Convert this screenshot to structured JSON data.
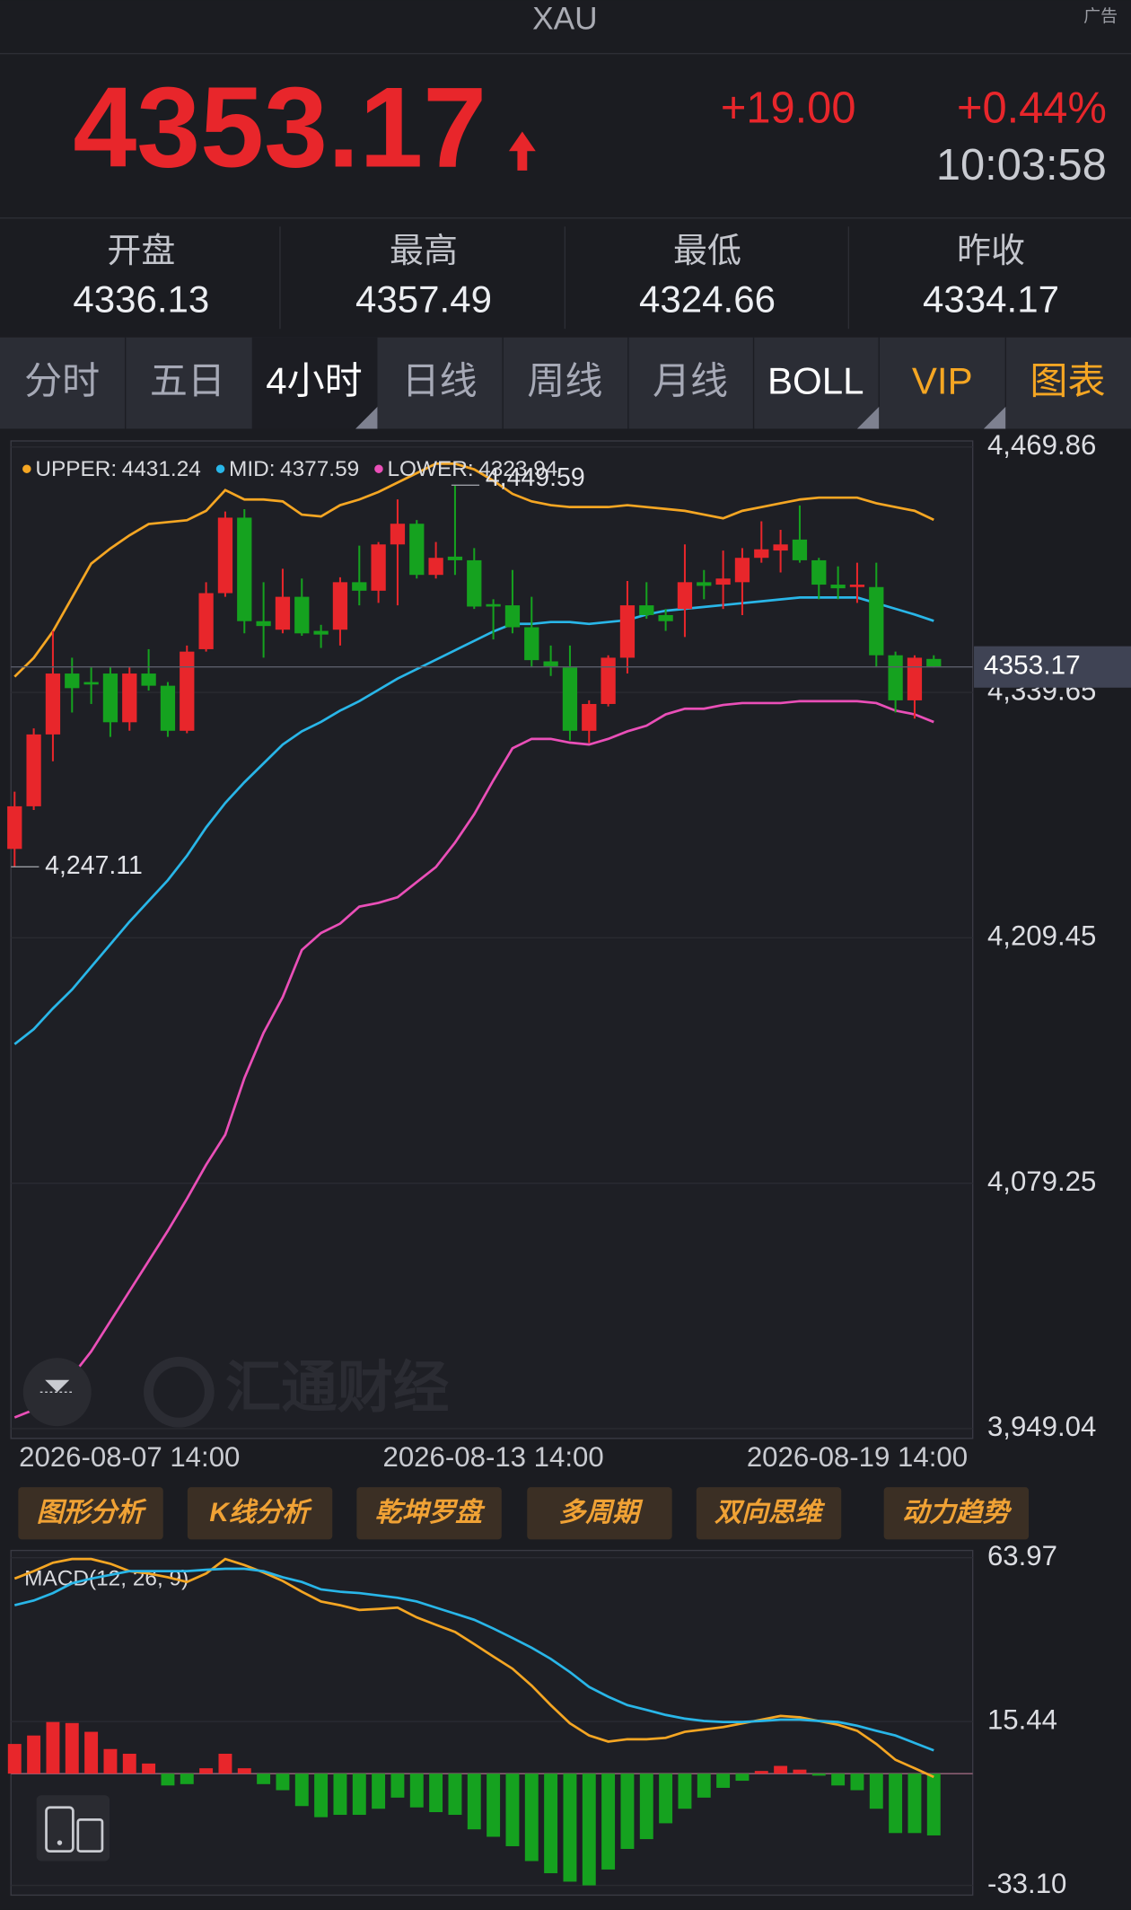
{
  "header": {
    "symbol": "XAU",
    "ad": "广告",
    "price": "4353.17",
    "change": "+19.00",
    "change_pct": "+0.44%",
    "time": "10:03:58"
  },
  "stats": [
    {
      "label": "开盘",
      "value": "4336.13"
    },
    {
      "label": "最高",
      "value": "4357.49"
    },
    {
      "label": "最低",
      "value": "4324.66"
    },
    {
      "label": "昨收",
      "value": "4334.17"
    }
  ],
  "tabs": [
    "分时",
    "五日",
    "4小时",
    "日线",
    "周线",
    "月线",
    "BOLL",
    "VIP",
    "图表"
  ],
  "tools": [
    "图形分析",
    "K线分析",
    "乾坤罗盘",
    "多周期",
    "双向思维",
    "动力趋势"
  ],
  "chart_data": [
    {
      "type": "candlestick",
      "watermark": "汇通财经",
      "categories": [
        null,
        null,
        null,
        null,
        null,
        null,
        "2026-08-07 14:00",
        null,
        null,
        null,
        null,
        null,
        null,
        null,
        null,
        null,
        null,
        null,
        null,
        null,
        null,
        null,
        null,
        null,
        null,
        "2026-08-13 14:00",
        null,
        null,
        null,
        null,
        null,
        null,
        null,
        null,
        null,
        null,
        null,
        null,
        null,
        null,
        null,
        null,
        null,
        null,
        "2026-08-19 14:00",
        null,
        null,
        null,
        null
      ],
      "ohlc": [
        [
          4256.62,
          4286.99,
          4247.11,
          4279.24
        ],
        [
          4279.24,
          4320.59,
          4277.3,
          4317.36
        ],
        [
          4317.36,
          4372.29,
          4303.15,
          4349.67
        ],
        [
          4349.67,
          4358.07,
          4328.99,
          4341.92
        ],
        [
          4345.15,
          4352.9,
          4333.52,
          4343.85
        ],
        [
          4349.67,
          4352.9,
          4316.07,
          4323.82
        ],
        [
          4323.82,
          4352.9,
          4319.3,
          4349.67
        ],
        [
          4349.67,
          4362.59,
          4340.62,
          4343.21
        ],
        [
          4343.21,
          4345.15,
          4316.07,
          4319.3
        ],
        [
          4319.3,
          4364.53,
          4318.01,
          4361.3
        ],
        [
          4362.59,
          4398.13,
          4361.3,
          4392.32
        ],
        [
          4392.32,
          4435.61,
          4390.38,
          4432.38
        ],
        [
          4432.38,
          4436.9,
          4370.99,
          4377.46
        ],
        [
          4377.46,
          4398.13,
          4358.07,
          4374.87
        ],
        [
          4372.93,
          4405.24,
          4370.99,
          4390.38
        ],
        [
          4390.38,
          4400.07,
          4369.7,
          4370.99
        ],
        [
          4372.29,
          4375.52,
          4363.24,
          4370.35
        ],
        [
          4372.93,
          4400.72,
          4364.53,
          4398.13
        ],
        [
          4398.13,
          4417.52,
          4385.86,
          4393.61
        ],
        [
          4393.61,
          4419.46,
          4387.15,
          4418.17
        ],
        [
          4418.17,
          4442.07,
          4385.86,
          4429.15
        ],
        [
          4429.15,
          4431.09,
          4400.07,
          4402.01
        ],
        [
          4402.01,
          4419.46,
          4400.07,
          4411.06
        ],
        [
          4411.7,
          4449.59,
          4402.01,
          4409.77
        ],
        [
          4409.77,
          4416.23,
          4383.92,
          4385.21
        ],
        [
          4386.5,
          4389.09,
          4367.76,
          4385.21
        ],
        [
          4385.86,
          4404.6,
          4370.99,
          4374.23
        ],
        [
          4374.23,
          4390.38,
          4352.9,
          4356.78
        ],
        [
          4356.13,
          4364.53,
          4348.38,
          4353.55
        ],
        [
          4352.9,
          4364.53,
          4314.13,
          4319.3
        ],
        [
          4319.3,
          4335.45,
          4312.84,
          4333.52
        ],
        [
          4333.52,
          4359.36,
          4332.22,
          4358.07
        ],
        [
          4358.07,
          4398.78,
          4349.67,
          4385.86
        ],
        [
          4385.86,
          4398.13,
          4378.75,
          4380.69
        ],
        [
          4380.69,
          4383.92,
          4372.29,
          4377.46
        ],
        [
          4383.92,
          4418.17,
          4369.06,
          4398.13
        ],
        [
          4398.13,
          4404.6,
          4389.09,
          4396.2
        ],
        [
          4396.84,
          4414.93,
          4383.92,
          4400.07
        ],
        [
          4398.13,
          4416.23,
          4380.69,
          4411.06
        ],
        [
          4411.06,
          4430.44,
          4408.47,
          4415.58
        ],
        [
          4414.93,
          4425.92,
          4403.3,
          4418.17
        ],
        [
          4420.75,
          4438.84,
          4408.47,
          4409.77
        ],
        [
          4409.77,
          4411.06,
          4389.09,
          4396.84
        ],
        [
          4396.84,
          4406.53,
          4389.09,
          4394.9
        ],
        [
          4395.55,
          4408.47,
          4387.15,
          4396.84
        ],
        [
          4395.55,
          4408.47,
          4352.9,
          4359.36
        ],
        [
          4359.36,
          4361.3,
          4328.99,
          4335.45
        ],
        [
          4335.45,
          4359.36,
          4325.76,
          4358.07
        ],
        [
          4357.42,
          4359.36,
          4352.9,
          4353.17
        ]
      ],
      "up_color": "#e8262b",
      "down_color": "#15a21f",
      "series": [
        {
          "name": "UPPER:",
          "color": "#f5a623",
          "values": [
            4348,
            4358,
            4372,
            4390,
            4408,
            4416,
            4423,
            4429,
            4430,
            4431,
            4436,
            4447,
            4442,
            4442,
            4441,
            4434,
            4433,
            4439,
            4442,
            4446,
            4451,
            4456,
            4461,
            4461,
            4458,
            4452,
            4445,
            4441,
            4439,
            4438,
            4438,
            4438,
            4439,
            4438,
            4437,
            4436,
            4434,
            4432,
            4436,
            4438,
            4440,
            4442,
            4443,
            4443,
            4443,
            4440,
            4438,
            4436,
            4431.24
          ]
        },
        {
          "name": "MID:",
          "color": "#29b6e8",
          "values": [
            4153,
            4161,
            4172,
            4182,
            4194,
            4206,
            4218,
            4229,
            4240,
            4253,
            4268,
            4281,
            4292,
            4302,
            4312,
            4319,
            4324,
            4330,
            4335,
            4341,
            4347,
            4352,
            4357,
            4362,
            4367,
            4372,
            4376,
            4376,
            4377,
            4377,
            4376,
            4377,
            4378,
            4381,
            4383,
            4384,
            4385,
            4386,
            4387,
            4388,
            4389,
            4390,
            4390,
            4390,
            4390,
            4387,
            4384,
            4381,
            4377.59
          ]
        },
        {
          "name": "LOWER:",
          "color": "#ea4fb8",
          "values": [
            3955,
            3959,
            3964,
            3977,
            3990,
            4006,
            4022,
            4038,
            4054,
            4071,
            4089,
            4105,
            4135,
            4159,
            4178,
            4203,
            4212,
            4217,
            4226,
            4228,
            4231,
            4239,
            4247,
            4260,
            4275,
            4293,
            4310,
            4315,
            4315,
            4313,
            4312,
            4315,
            4319,
            4322,
            4328,
            4331,
            4331,
            4333,
            4334,
            4334,
            4334,
            4335,
            4335,
            4335,
            4335,
            4334,
            4330,
            4328,
            4323.94
          ]
        }
      ],
      "annotations": [
        {
          "value": 4449.59,
          "label": "4,449.59"
        },
        {
          "value": 4247.11,
          "label": "4,247.11"
        }
      ],
      "ylim": [
        3949.04,
        4469.86
      ],
      "yticks": [
        {
          "value": 4469.86,
          "label": "4,469.86"
        },
        {
          "value": 4339.65,
          "label": "4,339.65"
        },
        {
          "value": 4209.45,
          "label": "4,209.45"
        },
        {
          "value": 4079.25,
          "label": "4,079.25"
        },
        {
          "value": 3949.04,
          "label": "3,949.04"
        }
      ],
      "grid": true
    },
    {
      "type": "macd",
      "title": "MACD(12, 26, 9)",
      "histogram": {
        "up_color": "#e8262b",
        "down_color": "#15a21f",
        "values": [
          8.8,
          11.3,
          15.3,
          15.0,
          12.4,
          7.3,
          5.9,
          3.0,
          -3.5,
          -3.1,
          1.6,
          5.9,
          1.6,
          -3.1,
          -4.9,
          -9.6,
          -12.9,
          -12.2,
          -12.2,
          -10.4,
          -7.1,
          -10.0,
          -11.4,
          -12.2,
          -16.5,
          -18.7,
          -21.5,
          -25.9,
          -29.5,
          -32.0,
          -33.1,
          -28.4,
          -22.3,
          -19.4,
          -14.7,
          -10.4,
          -7.1,
          -4.2,
          -2.1,
          0.8,
          2.3,
          1.2,
          -0.6,
          -3.5,
          -4.9,
          -10.4,
          -17.6,
          -17.6,
          -18.3
        ]
      },
      "series": [
        {
          "color": "#f5a623",
          "values": [
            57.8,
            60.0,
            62.5,
            63.6,
            63.6,
            62.2,
            60.0,
            59.3,
            58.2,
            56.8,
            59.3,
            63.6,
            61.8,
            59.6,
            57.1,
            53.9,
            51.0,
            49.9,
            48.5,
            48.8,
            49.2,
            46.3,
            44.1,
            42.0,
            38.4,
            34.7,
            31.1,
            26.1,
            20.3,
            14.9,
            11.3,
            9.5,
            10.2,
            10.2,
            10.6,
            12.4,
            13.1,
            13.8,
            14.9,
            16.0,
            17.1,
            16.7,
            15.6,
            14.5,
            12.7,
            8.8,
            4.1,
            1.6,
            -1.0
          ]
        },
        {
          "color": "#29b6e8",
          "values": [
            49.9,
            51.3,
            53.5,
            56.4,
            57.8,
            58.9,
            60.0,
            60.0,
            60.0,
            60.0,
            60.4,
            60.7,
            60.7,
            60.0,
            58.2,
            56.8,
            54.6,
            53.9,
            53.5,
            52.8,
            52.1,
            51.0,
            49.2,
            47.4,
            45.6,
            43.0,
            40.2,
            37.3,
            34.0,
            30.1,
            25.7,
            22.8,
            20.3,
            18.9,
            17.4,
            16.3,
            15.6,
            15.3,
            15.3,
            15.6,
            16.0,
            16.0,
            15.6,
            15.3,
            14.2,
            12.7,
            11.3,
            9.1,
            6.9
          ]
        }
      ],
      "ylim": [
        -33.1,
        63.97
      ],
      "yticks": [
        63.97,
        15.44,
        {
          "value": -33.1,
          "label": "-33.10"
        }
      ]
    }
  ]
}
